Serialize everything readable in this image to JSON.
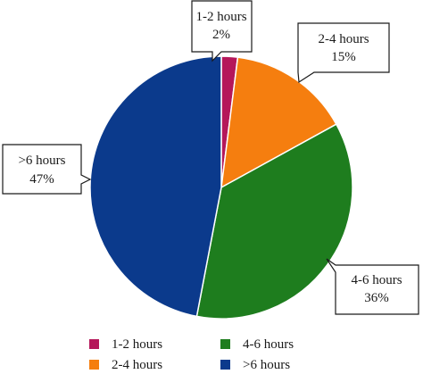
{
  "chart_data": {
    "type": "pie",
    "categories": [
      "1-2 hours",
      "2-4 hours",
      "4-6 hours",
      ">6 hours"
    ],
    "values": [
      2,
      15,
      36,
      47
    ],
    "value_labels": [
      "2%",
      "15%",
      "36%",
      "47%"
    ],
    "colors": [
      "#b5175a",
      "#f57e0f",
      "#1e7d1e",
      "#0b3a8c"
    ],
    "legend": {
      "placement": "bottom",
      "entries": [
        "1-2 hours",
        "4-6 hours",
        "2-4 hours",
        ">6 hours"
      ]
    }
  }
}
